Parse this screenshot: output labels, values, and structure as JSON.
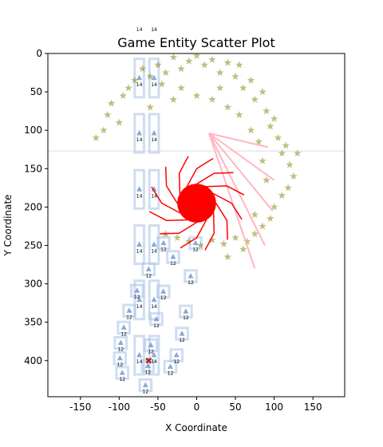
{
  "chart_data": {
    "type": "scatter",
    "title": "Game Entity Scatter Plot",
    "xlabel": "X Coordinate",
    "ylabel": "Y Coordinate",
    "xlim": [
      -192,
      191
    ],
    "ylim": [
      447,
      0
    ],
    "xticks": [
      -150,
      -100,
      -50,
      0,
      50,
      100,
      150
    ],
    "yticks": [
      0,
      50,
      100,
      150,
      200,
      250,
      300,
      350,
      400
    ],
    "hline": 127,
    "hline_color": "#dddddd",
    "stars": {
      "color": "#808000",
      "x": [
        -130,
        -120,
        -115,
        -110,
        -100,
        -95,
        -88,
        -80,
        -70,
        -60,
        -50,
        -40,
        -30,
        -20,
        -10,
        0,
        10,
        20,
        30,
        40,
        50,
        55,
        60,
        70,
        75,
        85,
        90,
        95,
        100,
        105,
        110,
        115,
        120,
        125,
        130,
        118,
        110,
        100,
        95,
        85,
        75,
        65,
        50,
        35,
        20,
        5,
        -10,
        -25,
        -40,
        -30,
        -20,
        0,
        20,
        40,
        55,
        70,
        80,
        85,
        -60,
        -45,
        30,
        90,
        75,
        40,
        60
      ],
      "y": [
        110,
        100,
        80,
        65,
        90,
        55,
        45,
        35,
        20,
        30,
        15,
        25,
        5,
        20,
        10,
        3,
        15,
        8,
        25,
        12,
        30,
        15,
        45,
        35,
        60,
        50,
        75,
        95,
        85,
        110,
        130,
        120,
        145,
        160,
        130,
        175,
        185,
        200,
        215,
        225,
        235,
        245,
        240,
        248,
        243,
        250,
        245,
        240,
        235,
        60,
        45,
        55,
        60,
        70,
        80,
        100,
        115,
        140,
        70,
        40,
        45,
        165,
        210,
        265,
        255
      ]
    },
    "spiral": {
      "color": "#ff0000",
      "lines": [
        {
          "x": [
            0,
            21.7,
            22.5,
            10.8
          ],
          "y": [
            195,
            207.5,
            234,
            256.1
          ]
        },
        {
          "x": [
            0,
            12.5,
            0,
            -21.2
          ],
          "y": [
            195,
            216.7,
            240,
            253.3
          ]
        },
        {
          "x": [
            0,
            0,
            -22.5,
            -47.5
          ],
          "y": [
            195,
            220,
            234,
            234.9
          ]
        },
        {
          "x": [
            0,
            -12.5,
            -39,
            -61.1
          ],
          "y": [
            195,
            216.7,
            217.5,
            205.8
          ]
        },
        {
          "x": [
            0,
            -21.7,
            -45,
            -58.3
          ],
          "y": [
            195,
            207.5,
            195,
            173.8
          ]
        },
        {
          "x": [
            0,
            -25,
            -39,
            -39.9
          ],
          "y": [
            195,
            195,
            172.5,
            147.5
          ]
        },
        {
          "x": [
            0,
            -21.7,
            -22.5,
            -10.8
          ],
          "y": [
            195,
            182.5,
            156,
            133.9
          ]
        },
        {
          "x": [
            0,
            -12.5,
            0,
            21.2
          ],
          "y": [
            195,
            173.3,
            150,
            136.7
          ]
        },
        {
          "x": [
            0,
            0,
            22.5,
            47.5
          ],
          "y": [
            195,
            170,
            156,
            155.1
          ]
        },
        {
          "x": [
            0,
            12.5,
            39,
            61.1
          ],
          "y": [
            195,
            173.3,
            172.5,
            184.2
          ]
        },
        {
          "x": [
            0,
            21.7,
            45,
            58.3
          ],
          "y": [
            195,
            182.5,
            195,
            216.2
          ]
        },
        {
          "x": [
            0,
            25,
            39,
            39.9
          ],
          "y": [
            195,
            195,
            217.5,
            242.5
          ]
        }
      ]
    },
    "core": {
      "x": 0,
      "y": 195,
      "r": 25,
      "color": "#ff0000"
    },
    "fan": {
      "color": "#ffb6c1",
      "lines": [
        {
          "x": [
            16,
            92
          ],
          "y": [
            104,
            122
          ]
        },
        {
          "x": [
            16,
            100
          ],
          "y": [
            104,
            165
          ]
        },
        {
          "x": [
            16,
            98
          ],
          "y": [
            104,
            205
          ]
        },
        {
          "x": [
            16,
            88
          ],
          "y": [
            104,
            250
          ]
        },
        {
          "x": [
            16,
            75
          ],
          "y": [
            104,
            280
          ]
        }
      ]
    },
    "entity_color": "#aec7e8",
    "entities": [
      {
        "label": "14",
        "w": 12,
        "h": 50,
        "x": [
          -74,
          -55,
          -74,
          -55,
          -74,
          -55,
          -74,
          -55,
          -74,
          -55,
          -74,
          -55,
          -74,
          -55
        ],
        "y": [
          -39.5,
          -39.5,
          32,
          32,
          104,
          104,
          177,
          177,
          249,
          249,
          321,
          321,
          393,
          393
        ]
      },
      {
        "label": "12",
        "w": 15,
        "h": 15,
        "x": [
          -42.8,
          -30.4,
          -7.7,
          -1.5,
          -62,
          -77,
          -43,
          -87,
          -52,
          -14,
          -94,
          -19,
          -98,
          -59,
          -26,
          -99,
          -63,
          -96,
          -34,
          -66
        ],
        "y": [
          247,
          265,
          290,
          247,
          281,
          309,
          310,
          335,
          346,
          336,
          357,
          365,
          377,
          380,
          393,
          397,
          407,
          416,
          408,
          432
        ]
      }
    ],
    "marker": {
      "x": -62,
      "y": 400,
      "color": "#b22222"
    }
  }
}
